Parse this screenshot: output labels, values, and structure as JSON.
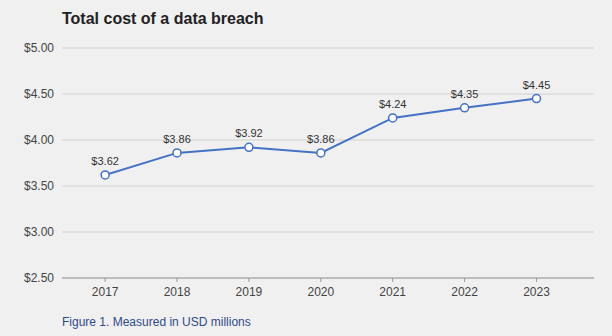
{
  "chart_data": {
    "type": "line",
    "title": "Total cost of a data breach",
    "caption": "Figure 1. Measured in USD millions",
    "x": [
      2017,
      2018,
      2019,
      2020,
      2021,
      2022,
      2023
    ],
    "values": [
      3.62,
      3.86,
      3.92,
      3.86,
      4.24,
      4.35,
      4.45
    ],
    "value_labels": [
      "$3.62",
      "$3.86",
      "$3.92",
      "$3.86",
      "$4.24",
      "$4.35",
      "$4.45"
    ],
    "data_labels": true,
    "color": "#4472c4",
    "marker": "circle",
    "line_style": "solid",
    "xlim": [
      2016.4,
      2023.8
    ],
    "xticks": [
      2017,
      2018,
      2019,
      2020,
      2021,
      2022,
      2023
    ],
    "ylim": [
      2.5,
      5.0
    ],
    "yticks": [
      {
        "value": 2.5,
        "label": "$2.50"
      },
      {
        "value": 3.0,
        "label": "$3.00"
      },
      {
        "value": 3.5,
        "label": "$3.50"
      },
      {
        "value": 4.0,
        "label": "$4.00"
      },
      {
        "value": 4.5,
        "label": "$4.50"
      },
      {
        "value": 5.0,
        "label": "$5.00"
      }
    ],
    "grid": true
  }
}
